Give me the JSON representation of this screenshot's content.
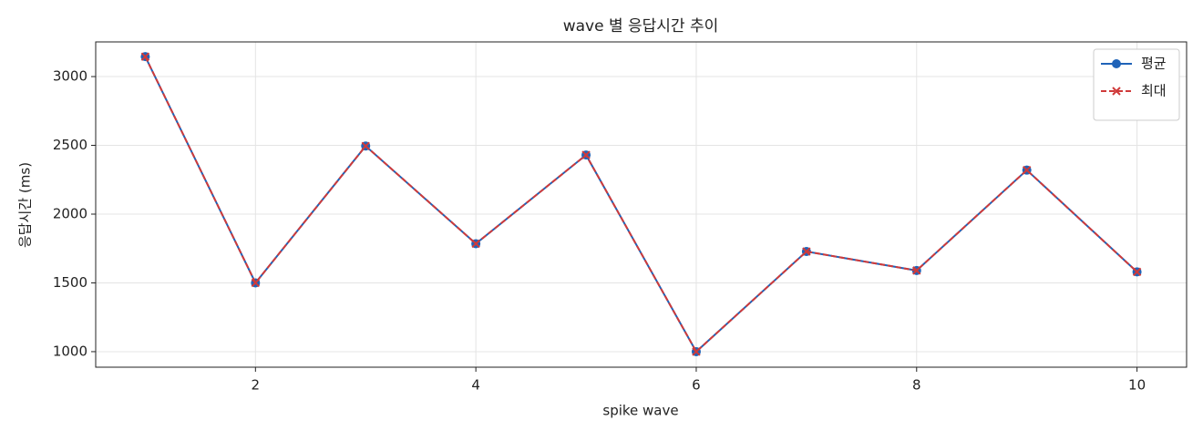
{
  "chart_data": {
    "type": "line",
    "title": "wave 별 응답시간 추이",
    "x_label": "spike wave",
    "y_label": "응답시간 (ms)",
    "x": [
      1,
      2,
      3,
      4,
      5,
      6,
      7,
      8,
      9,
      10
    ],
    "series": [
      {
        "name": "평균",
        "color": "#1f63b8",
        "linestyle": "solid",
        "marker": "circle",
        "values": [
          3145,
          1500,
          2495,
          1785,
          2430,
          1000,
          1728,
          1590,
          2320,
          1580
        ]
      },
      {
        "name": "최대",
        "color": "#d03a3a",
        "linestyle": "dashed",
        "marker": "x",
        "values": [
          3145,
          1500,
          2495,
          1785,
          2430,
          1000,
          1728,
          1590,
          2320,
          1580
        ]
      }
    ],
    "xlim": [
      0.55,
      10.45
    ],
    "xticks": [
      2,
      4,
      6,
      8,
      10
    ],
    "ylim": [
      887,
      3252
    ],
    "yticks": [
      1000,
      1500,
      2000,
      2500,
      3000
    ],
    "grid": true,
    "legend": "upper right"
  }
}
